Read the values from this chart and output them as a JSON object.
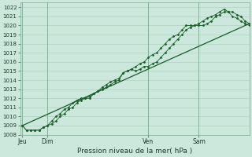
{
  "xlabel": "Pression niveau de la mer( hPa )",
  "bg_color": "#cce8dc",
  "grid_color": "#aaccb8",
  "line_color": "#1a5c2a",
  "axis_color": "#336644",
  "ylim": [
    1008,
    1022.5
  ],
  "ytick_min": 1008,
  "ytick_max": 1022,
  "ytick_step": 1,
  "day_labels": [
    "Jeu",
    "Dim",
    "Ven",
    "Sam"
  ],
  "day_positions": [
    0,
    12,
    60,
    84
  ],
  "xlim": [
    -1,
    108
  ],
  "series1_x": [
    0,
    2,
    4,
    6,
    8,
    10,
    12,
    14,
    16,
    18,
    20,
    22,
    24,
    26,
    28,
    30,
    32,
    34,
    36,
    38,
    40,
    42,
    44,
    46,
    48,
    50,
    52,
    54,
    56,
    58,
    60,
    62,
    64,
    66,
    68,
    70,
    72,
    74,
    76,
    78,
    80,
    82,
    84,
    86,
    88,
    90,
    92,
    94,
    96,
    98,
    100,
    102,
    104,
    106,
    108
  ],
  "series1_y": [
    1009.0,
    1008.5,
    1008.5,
    1008.5,
    1008.5,
    1008.8,
    1009.0,
    1009.2,
    1009.5,
    1010.0,
    1010.3,
    1010.8,
    1011.0,
    1011.5,
    1011.8,
    1012.0,
    1012.0,
    1012.5,
    1012.8,
    1013.0,
    1013.2,
    1013.5,
    1013.8,
    1014.0,
    1014.8,
    1015.0,
    1015.2,
    1015.0,
    1015.2,
    1015.5,
    1015.5,
    1015.8,
    1016.0,
    1016.5,
    1017.0,
    1017.5,
    1018.0,
    1018.5,
    1019.0,
    1019.5,
    1019.8,
    1020.0,
    1020.0,
    1020.0,
    1020.2,
    1020.5,
    1021.0,
    1021.2,
    1021.5,
    1021.5,
    1021.5,
    1021.2,
    1021.0,
    1020.5,
    1020.2
  ],
  "series2_x": [
    0,
    2,
    4,
    6,
    8,
    10,
    12,
    14,
    16,
    18,
    20,
    22,
    24,
    26,
    28,
    30,
    32,
    34,
    36,
    38,
    40,
    42,
    44,
    46,
    48,
    50,
    52,
    54,
    56,
    58,
    60,
    62,
    64,
    66,
    68,
    70,
    72,
    74,
    76,
    78,
    80,
    82,
    84,
    86,
    88,
    90,
    92,
    94,
    96,
    98,
    100,
    102,
    104,
    106,
    108
  ],
  "series2_y": [
    1009.0,
    1008.5,
    1008.5,
    1008.5,
    1008.5,
    1008.8,
    1009.0,
    1009.5,
    1010.0,
    1010.3,
    1010.8,
    1011.0,
    1011.5,
    1011.8,
    1012.0,
    1012.0,
    1012.2,
    1012.5,
    1012.8,
    1013.2,
    1013.5,
    1013.8,
    1014.0,
    1014.2,
    1014.8,
    1015.0,
    1015.2,
    1015.5,
    1015.8,
    1016.0,
    1016.5,
    1016.8,
    1017.0,
    1017.5,
    1018.0,
    1018.5,
    1018.8,
    1019.0,
    1019.5,
    1020.0,
    1020.0,
    1020.0,
    1020.2,
    1020.5,
    1020.8,
    1021.0,
    1021.2,
    1021.5,
    1021.8,
    1021.5,
    1021.0,
    1020.8,
    1020.5,
    1020.2,
    1020.0
  ],
  "trend_x": [
    0,
    108
  ],
  "trend_y": [
    1009.0,
    1020.2
  ]
}
